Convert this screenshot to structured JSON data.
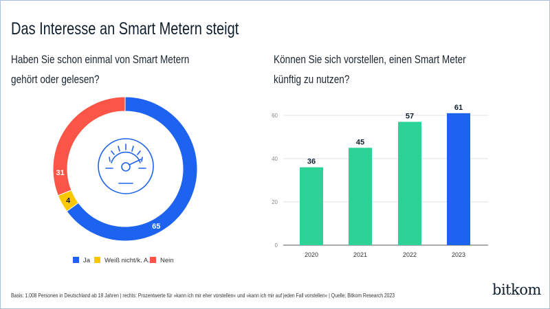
{
  "title": "Das Interesse an Smart Metern steigt",
  "left": {
    "question_line1": "Haben Sie schon einmal von Smart Metern",
    "question_line2": "gehört oder gelesen?"
  },
  "right": {
    "question_line1": "Können Sie sich vorstellen, einen Smart Meter",
    "question_line2": "künftig zu nutzen?"
  },
  "footer": "Basis: 1.008 Personen in Deutschland ab 18 Jahren | rechts: Prozentwerte für »kann ich mir eher vorstellen« und »kann ich mir auf jeden Fall vorstellen« | Quelle: Bitkom Research 2023",
  "logo": "bitkom",
  "chart_data": [
    {
      "type": "pie",
      "donut": true,
      "center_icon": "speedometer-icon",
      "categories": [
        "Ja",
        "Weiß nicht/k. A.",
        "Nein"
      ],
      "values": [
        65,
        4,
        31
      ],
      "colors": [
        "#1e62f0",
        "#fac800",
        "#fa5546"
      ],
      "label_colors": [
        "#ffffff",
        "#0f1e2d",
        "#ffffff"
      ],
      "legend": "bottom"
    },
    {
      "type": "bar",
      "categories": [
        "2020",
        "2021",
        "2022",
        "2023"
      ],
      "values": [
        36,
        45,
        57,
        61
      ],
      "colors": [
        "#2dd296",
        "#2dd296",
        "#2dd296",
        "#1e62f0"
      ],
      "yticks": [
        0,
        20,
        40,
        60
      ],
      "ylim": [
        0,
        60
      ],
      "grid": true
    }
  ]
}
